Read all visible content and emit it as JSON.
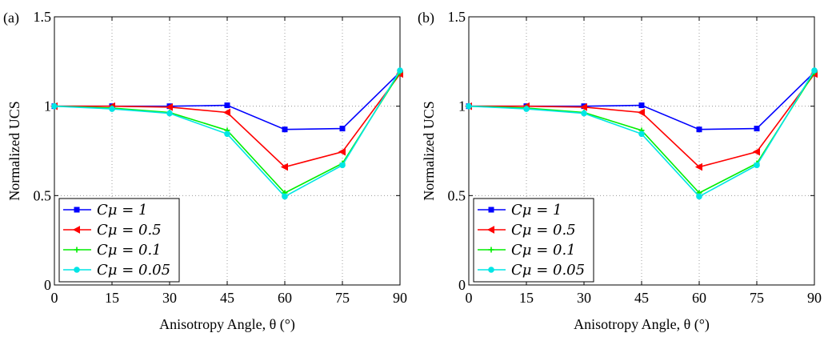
{
  "chart_data": [
    {
      "type": "line",
      "panel_label": "(a)",
      "xlabel": "Anisotropy Angle, θ (°)",
      "ylabel": "Normalized UCS",
      "x": [
        0,
        15,
        30,
        45,
        60,
        75,
        90
      ],
      "xlim": [
        0,
        90
      ],
      "ylim": [
        0,
        1.5
      ],
      "xticks": [
        "0",
        "15",
        "30",
        "45",
        "60",
        "75",
        "90"
      ],
      "yticks": [
        "0",
        "0.5",
        "1",
        "1.5"
      ],
      "grid": true,
      "legend_position": "bottom-left",
      "series": [
        {
          "name": "Cμ = 1",
          "color": "#0000ff",
          "marker": "square",
          "values": [
            1.0,
            1.0,
            1.0,
            1.005,
            0.87,
            0.875,
            1.19
          ]
        },
        {
          "name": "Cμ = 0.5",
          "color": "#ff0000",
          "marker": "triangle-left",
          "values": [
            1.0,
            1.0,
            0.995,
            0.965,
            0.66,
            0.745,
            1.18
          ]
        },
        {
          "name": "Cμ = 0.1",
          "color": "#00ee00",
          "marker": "plus",
          "values": [
            1.0,
            0.99,
            0.965,
            0.865,
            0.515,
            0.68,
            1.19
          ]
        },
        {
          "name": "Cμ = 0.05",
          "color": "#00e5e5",
          "marker": "circle",
          "values": [
            1.0,
            0.985,
            0.96,
            0.845,
            0.495,
            0.67,
            1.2
          ]
        }
      ]
    },
    {
      "type": "line",
      "panel_label": "(b)",
      "xlabel": "Anisotropy Angle, θ (°)",
      "ylabel": "Normalized UCS",
      "x": [
        0,
        15,
        30,
        45,
        60,
        75,
        90
      ],
      "xlim": [
        0,
        90
      ],
      "ylim": [
        0,
        1.5
      ],
      "xticks": [
        "0",
        "15",
        "30",
        "45",
        "60",
        "75",
        "90"
      ],
      "yticks": [
        "0",
        "0.5",
        "1",
        "1.5"
      ],
      "grid": true,
      "legend_position": "bottom-left",
      "series": [
        {
          "name": "Cμ = 1",
          "color": "#0000ff",
          "marker": "square",
          "values": [
            1.0,
            1.0,
            1.0,
            1.005,
            0.87,
            0.875,
            1.19
          ]
        },
        {
          "name": "Cμ = 0.5",
          "color": "#ff0000",
          "marker": "triangle-left",
          "values": [
            1.0,
            1.0,
            0.995,
            0.965,
            0.66,
            0.745,
            1.18
          ]
        },
        {
          "name": "Cμ = 0.1",
          "color": "#00ee00",
          "marker": "plus",
          "values": [
            1.0,
            0.99,
            0.965,
            0.865,
            0.515,
            0.68,
            1.19
          ]
        },
        {
          "name": "Cμ = 0.05",
          "color": "#00e5e5",
          "marker": "circle",
          "values": [
            1.0,
            0.985,
            0.96,
            0.845,
            0.495,
            0.67,
            1.2
          ]
        }
      ]
    }
  ]
}
